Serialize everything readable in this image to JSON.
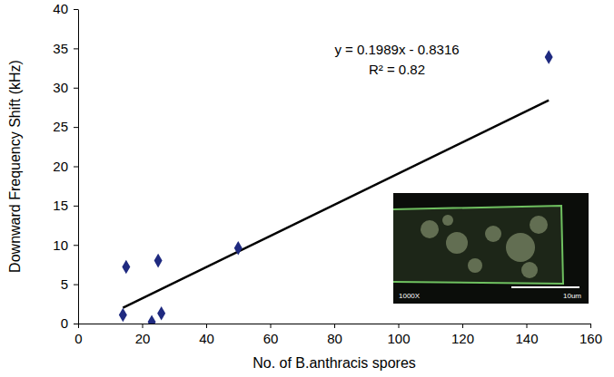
{
  "chart_data": {
    "type": "scatter",
    "x_label": "No. of B.anthracis spores",
    "y_label": "Downward Frequency Shift (kHz)",
    "x": [
      14,
      15,
      23,
      25,
      26,
      50,
      147
    ],
    "y": [
      1.1,
      7.2,
      0.2,
      8.0,
      1.3,
      9.6,
      33.9
    ],
    "color": "#1f2a80",
    "marker": "diamond",
    "trendline": {
      "x": [
        14,
        147
      ],
      "y": [
        2.0,
        28.4
      ],
      "color": "#000000"
    },
    "annotations": [
      "y = 0.1989x - 0.8316",
      "R² = 0.82"
    ],
    "inset": {
      "magnification": "1000X",
      "scale_bar": "10um"
    },
    "xlim": [
      0,
      160
    ],
    "xticks": [
      0,
      20,
      40,
      60,
      80,
      100,
      120,
      140,
      160
    ],
    "ylim": [
      0,
      40
    ],
    "yticks": [
      0,
      5,
      10,
      15,
      20,
      25,
      30,
      35,
      40
    ],
    "grid": false
  }
}
